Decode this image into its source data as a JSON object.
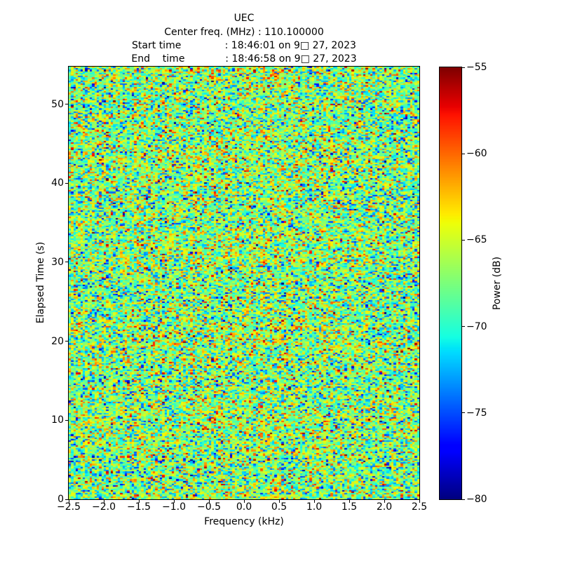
{
  "figure": {
    "header_lines": [
      "UEC",
      "Center freq. (MHz) : 110.100000",
      "Start time              : 18:46:01 on 9□ 27, 2023",
      "End    time             : 18:46:58 on 9□ 27, 2023"
    ]
  },
  "chart_data": {
    "type": "heatmap",
    "title": "UEC",
    "subtitle": {
      "center_freq_mhz": "110.100000",
      "start_time": "18:46:01 on 9□ 27, 2023",
      "end_time": "18:46:58 on 9□ 27, 2023"
    },
    "xlabel": "Frequency (kHz)",
    "ylabel": "Elapsed Time (s)",
    "xlim": [
      -2.5,
      2.5
    ],
    "ylim": [
      0,
      54.76
    ],
    "grid": false,
    "xticks": {
      "values": [
        -2.5,
        -2.0,
        -1.5,
        -1.0,
        -0.5,
        0.0,
        0.5,
        1.0,
        1.5,
        2.0,
        2.5
      ],
      "labels": [
        "−2.5",
        "−2.0",
        "−1.5",
        "−1.0",
        "−0.5",
        "0.0",
        "0.5",
        "1.0",
        "1.5",
        "2.0",
        "2.5"
      ]
    },
    "yticks": {
      "values": [
        0,
        10,
        20,
        30,
        40,
        50
      ],
      "labels": [
        "0",
        "10",
        "20",
        "30",
        "40",
        "50"
      ]
    },
    "colormap": "jet",
    "colorbar": {
      "label": "Power (dB)",
      "position": "right",
      "vmin": -80,
      "vmax": -55,
      "ticks": {
        "values": [
          -55,
          -60,
          -65,
          -70,
          -75,
          -80
        ],
        "labels": [
          "−55",
          "−60",
          "−65",
          "−70",
          "−75",
          "−80"
        ]
      }
    },
    "data_summary": {
      "content": "broadband random noise spectrogram, no discrete signal visible",
      "mean_power_db": -67.8,
      "std_power_db": 4.2,
      "min_power_db": -80,
      "max_power_db": -55
    },
    "noise_render": {
      "rows": 280,
      "cols": 150,
      "seed": 1234,
      "center_col_bias_db": 0.9
    }
  }
}
